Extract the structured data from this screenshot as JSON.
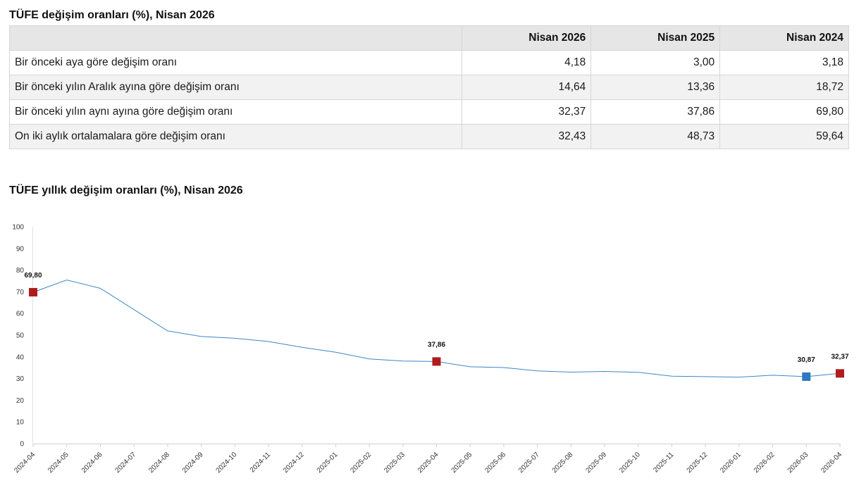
{
  "table": {
    "title": "TÜFE değişim oranları (%), Nisan 2026",
    "headers": [
      "",
      "Nisan 2026",
      "Nisan 2025",
      "Nisan 2024"
    ],
    "rows": [
      {
        "label": "Bir önceki aya göre değişim oranı",
        "values": [
          "4,18",
          "3,00",
          "3,18"
        ]
      },
      {
        "label": "Bir önceki yılın Aralık ayına göre değişim oranı",
        "values": [
          "14,64",
          "13,36",
          "18,72"
        ]
      },
      {
        "label": "Bir önceki yılın aynı ayına göre değişim oranı",
        "values": [
          "32,37",
          "37,86",
          "69,80"
        ]
      },
      {
        "label": "On iki aylık ortalamalara göre değişim oranı",
        "values": [
          "32,43",
          "48,73",
          "59,64"
        ]
      }
    ]
  },
  "chart_data": {
    "type": "line",
    "title": "TÜFE yıllık değişim oranları (%), Nisan 2026",
    "xlabel": "",
    "ylabel": "",
    "ylim": [
      0,
      100
    ],
    "yticks": [
      0,
      10,
      20,
      30,
      40,
      50,
      60,
      70,
      80,
      90,
      100
    ],
    "grid": false,
    "x": [
      "2024-04",
      "2024-05",
      "2024-06",
      "2024-07",
      "2024-08",
      "2024-09",
      "2024-10",
      "2024-11",
      "2024-12",
      "2025-01",
      "2025-02",
      "2025-03",
      "2025-04",
      "2025-05",
      "2025-06",
      "2025-07",
      "2025-08",
      "2025-09",
      "2025-10",
      "2025-11",
      "2025-12",
      "2026-01",
      "2026-02",
      "2026-03",
      "2026-04"
    ],
    "series": [
      {
        "values": [
          69.8,
          75.45,
          71.6,
          61.78,
          51.97,
          49.38,
          48.58,
          47.09,
          44.38,
          42.12,
          39.05,
          38.1,
          37.86,
          35.41,
          35.05,
          33.52,
          32.95,
          33.29,
          32.87,
          31.07,
          30.89,
          30.65,
          31.53,
          30.87,
          32.37
        ],
        "color": "#3d86c6"
      }
    ],
    "highlights": [
      {
        "x": "2024-04",
        "value": 69.8,
        "label": "69,80",
        "color": "#b01c1c"
      },
      {
        "x": "2025-04",
        "value": 37.86,
        "label": "37,86",
        "color": "#b01c1c"
      },
      {
        "x": "2026-03",
        "value": 30.87,
        "label": "30,87",
        "color": "#2e7ac0"
      },
      {
        "x": "2026-04",
        "value": 32.37,
        "label": "32,37",
        "color": "#b01c1c"
      }
    ]
  }
}
